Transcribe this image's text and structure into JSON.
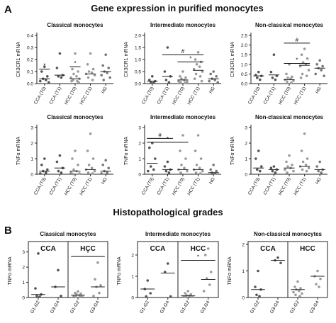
{
  "figure": {
    "panel_a": "A",
    "title_a": "Gene expression in purified monocytes",
    "title_b": "Histopathological grades",
    "panel_b": "B"
  },
  "chart_data": [
    {
      "type": "dot",
      "title": "Classical monocytes",
      "ylabel": "CX3CR1 mRNA",
      "categories": [
        "CCA (T0)",
        "CCA (T1)",
        "HCC (T0)",
        "HCC (T1)",
        "HG"
      ],
      "ylim": [
        0,
        0.4
      ],
      "yticks": [
        {
          "value": 0,
          "label": "0.0"
        },
        0.1,
        0.2,
        0.3,
        0.4
      ],
      "points": [
        [
          0.14,
          0.1,
          0.06,
          0.04,
          0.03,
          0.02,
          0.01
        ],
        [
          0.25,
          0.13,
          0.07,
          0.06,
          0.05
        ],
        [
          0.25,
          0.12,
          0.1,
          0.08,
          0.06,
          0.05,
          0.04,
          0.03,
          0.02,
          0.02,
          0.01
        ],
        [
          0.25,
          0.16,
          0.12,
          0.1,
          0.09,
          0.08,
          0.07,
          0.05,
          0.03
        ],
        [
          0.24,
          0.15,
          0.13,
          0.1,
          0.09,
          0.07,
          0.05,
          0.03
        ]
      ],
      "medians": [
        0.04,
        0.07,
        0.04,
        0.08,
        0.1
      ],
      "colors": [
        "#555555",
        "#555555",
        "#9a9a9a",
        "#9a9a9a",
        "#777777"
      ],
      "brackets": [
        {
          "from": 0,
          "to": 0,
          "y": 0.12,
          "label": "*"
        },
        {
          "from": 2,
          "to": 2,
          "y": 0.14,
          "label": "*"
        }
      ]
    },
    {
      "type": "dot",
      "title": "Intermediate monocytes",
      "ylabel": "CX3CR1 mRNA",
      "categories": [
        "CCA (T0)",
        "CCA (T1)",
        "HCC (T0)",
        "HCC (T1)",
        "HG"
      ],
      "ylim": [
        0,
        2.0
      ],
      "yticks": [
        {
          "value": 0,
          "label": "0.0"
        },
        0.5,
        {
          "value": 1,
          "label": "1.0"
        },
        1.5,
        {
          "value": 2,
          "label": "2.0"
        }
      ],
      "points": [
        [
          0.3,
          0.15,
          0.1,
          0.05,
          0.03
        ],
        [
          1.5,
          0.5,
          0.3,
          0.15,
          0.05
        ],
        [
          0.5,
          0.3,
          0.25,
          0.2,
          0.15,
          0.1,
          0.08,
          0.05,
          0.03,
          0.02
        ],
        [
          1.3,
          1.0,
          0.9,
          0.8,
          0.7,
          0.6,
          0.5,
          0.4,
          0.3,
          0.2,
          0.1
        ],
        [
          0.5,
          0.4,
          0.3,
          0.2,
          0.15,
          0.1,
          0.05
        ]
      ],
      "medians": [
        0.1,
        0.3,
        0.15,
        0.55,
        0.2
      ],
      "colors": [
        "#555555",
        "#555555",
        "#9a9a9a",
        "#9a9a9a",
        "#777777"
      ],
      "brackets": [
        {
          "from": 1,
          "to": 3,
          "y": 1.2,
          "label": "#"
        },
        {
          "from": 2,
          "to": 3,
          "y": 0.9,
          "label": "*"
        }
      ]
    },
    {
      "type": "dot",
      "title": "Non-classical monocytes",
      "ylabel": "CX3CR1 mRNA",
      "categories": [
        "CCA (T0)",
        "CCA (T1)",
        "HCC (T0)",
        "HCC (T1)",
        "HG"
      ],
      "ylim": [
        0,
        2.5
      ],
      "yticks": [
        {
          "value": 0,
          "label": "0.0"
        },
        0.5,
        {
          "value": 1,
          "label": "1.0"
        },
        1.5,
        {
          "value": 2,
          "label": "2.0"
        },
        2.5
      ],
      "points": [
        [
          0.6,
          0.45,
          0.4,
          0.3,
          0.2
        ],
        [
          1.5,
          0.6,
          0.4,
          0.3,
          0.2
        ],
        [
          1.0,
          0.5,
          0.35,
          0.3,
          0.25,
          0.2,
          0.15,
          0.1,
          0.05
        ],
        [
          1.8,
          1.5,
          1.3,
          1.1,
          1.0,
          0.9,
          0.7,
          0.5,
          0.4,
          0.3
        ],
        [
          1.2,
          1.0,
          0.9,
          0.8,
          0.7,
          0.5,
          0.4
        ]
      ],
      "medians": [
        0.4,
        0.45,
        0.2,
        0.95,
        0.8
      ],
      "colors": [
        "#555555",
        "#555555",
        "#9a9a9a",
        "#9a9a9a",
        "#777777"
      ],
      "brackets": [
        {
          "from": 2,
          "to": 3,
          "y": 2.1,
          "label": "#"
        },
        {
          "from": 2,
          "to": 3,
          "y": 1.05,
          "label": "*"
        }
      ]
    },
    {
      "type": "dot",
      "title": "Classical monocytes",
      "ylabel": "TNFα mRNA",
      "categories": [
        "CCA (T0)",
        "CCA (T1)",
        "HCC (T0)",
        "HCC (T1)",
        "HG"
      ],
      "ylim": [
        0,
        3
      ],
      "yticks": [
        0,
        1,
        2,
        3
      ],
      "points": [
        [
          1.0,
          0.6,
          0.3,
          0.2,
          0.1,
          0.05
        ],
        [
          1.2,
          0.8,
          0.4,
          0.2,
          0.1
        ],
        [
          1.5,
          1.0,
          0.6,
          0.3,
          0.2,
          0.1,
          0.05,
          0.02
        ],
        [
          2.6,
          1.5,
          1.0,
          0.6,
          0.4,
          0.3,
          0.2,
          0.1,
          0.05
        ],
        [
          0.9,
          0.6,
          0.4,
          0.2,
          0.1,
          0.05
        ]
      ],
      "medians": [
        0.2,
        0.4,
        0.2,
        0.3,
        0.2
      ],
      "colors": [
        "#555555",
        "#555555",
        "#9a9a9a",
        "#9a9a9a",
        "#777777"
      ],
      "brackets": []
    },
    {
      "type": "dot",
      "title": "Intermediate monocytes",
      "ylabel": "TNFα mRNA",
      "categories": [
        "CCA (T0)",
        "CCA (T1)",
        "HCC (T0)",
        "HCC (T1)",
        "HG"
      ],
      "ylim": [
        0,
        3
      ],
      "yticks": [
        0,
        1,
        2,
        3
      ],
      "points": [
        [
          2.0,
          1.7,
          1.0,
          0.5,
          0.3,
          0.2
        ],
        [
          0.8,
          0.5,
          0.3,
          0.2,
          0.1
        ],
        [
          2.5,
          1.5,
          1.0,
          0.6,
          0.4,
          0.3,
          0.2,
          0.1
        ],
        [
          2.5,
          1.5,
          1.0,
          0.6,
          0.4,
          0.3,
          0.2,
          0.1,
          0.05
        ],
        [
          0.6,
          0.3,
          0.2,
          0.1,
          0.05
        ]
      ],
      "medians": [
        0.7,
        0.3,
        0.3,
        0.3,
        0.1
      ],
      "colors": [
        "#555555",
        "#555555",
        "#9a9a9a",
        "#9a9a9a",
        "#777777"
      ],
      "brackets": [
        {
          "from": 0,
          "to": 1,
          "y": 2.3,
          "label": "#"
        },
        {
          "from": 0,
          "to": 2,
          "y": 2.05,
          "label": "*"
        }
      ]
    },
    {
      "type": "dot",
      "title": "Non-classical monocytes",
      "ylabel": "TNFα mRNA",
      "categories": [
        "CCA (T0)",
        "CCA (T1)",
        "HCC (T0)",
        "HCC (T1)",
        "HG"
      ],
      "ylim": [
        0,
        3
      ],
      "yticks": [
        0,
        1,
        2,
        3
      ],
      "points": [
        [
          1.5,
          1.0,
          0.5,
          0.3,
          0.2
        ],
        [
          0.5,
          0.4,
          0.3,
          0.2,
          0.1
        ],
        [
          1.2,
          0.8,
          0.6,
          0.5,
          0.4,
          0.3,
          0.2,
          0.1
        ],
        [
          2.6,
          1.5,
          1.0,
          0.8,
          0.6,
          0.5,
          0.4,
          0.3,
          0.2
        ],
        [
          0.8,
          0.5,
          0.3,
          0.2,
          0.1
        ]
      ],
      "medians": [
        0.4,
        0.3,
        0.4,
        0.5,
        0.3
      ],
      "colors": [
        "#555555",
        "#555555",
        "#9a9a9a",
        "#9a9a9a",
        "#777777"
      ],
      "brackets": []
    },
    {
      "type": "grade",
      "title": "Classical monocytes",
      "ylabel": "TNFα mRNA",
      "categories": [
        "G1-G2",
        "G3-G4",
        "G1-G2",
        "G3-G4"
      ],
      "groups": [
        {
          "label": "CCA",
          "from": 0,
          "to": 1
        },
        {
          "label": "HCC",
          "from": 2,
          "to": 3
        }
      ],
      "ylim": [
        0,
        3.5
      ],
      "yticks": [
        0,
        1,
        2,
        3
      ],
      "points": [
        [
          2.9,
          0.6,
          0.2,
          0.1,
          0.05
        ],
        [
          1.8,
          0.7,
          0.1
        ],
        [
          0.4,
          0.3,
          0.25,
          0.2,
          0.15,
          0.1,
          0.08,
          0.05,
          0.03
        ],
        [
          2.3,
          1.2,
          0.8,
          0.7,
          0.3,
          0.1
        ]
      ],
      "medians": [
        0.2,
        0.7,
        0.15,
        0.7
      ],
      "colors": [
        "#555555",
        "#555555",
        "#9a9a9a",
        "#9a9a9a"
      ],
      "brackets": [
        {
          "from": 2,
          "to": 3,
          "y": 2.7,
          "label": "*"
        }
      ]
    },
    {
      "type": "grade",
      "title": "Intermediate monocytes",
      "ylabel": "TNFα mRNA",
      "categories": [
        "G1-G2",
        "G3-G4",
        "G1-G2",
        "G3-G4"
      ],
      "groups": [
        {
          "label": "CCA",
          "from": 0,
          "to": 1
        },
        {
          "label": "HCC",
          "from": 2,
          "to": 3
        }
      ],
      "ylim": [
        0,
        2.5
      ],
      "yticks": [
        0,
        1,
        2
      ],
      "points": [
        [
          0.8,
          0.4,
          0.2,
          0.05
        ],
        [
          1.6,
          1.2,
          0.05
        ],
        [
          0.3,
          0.2,
          0.15,
          0.1,
          0.08,
          0.05,
          0.03,
          0.02
        ],
        [
          2.3,
          2.0,
          1.2,
          0.9,
          0.6,
          0.3
        ]
      ],
      "medians": [
        0.4,
        1.15,
        0.08,
        0.85
      ],
      "colors": [
        "#555555",
        "#555555",
        "#9a9a9a",
        "#9a9a9a"
      ],
      "brackets": [
        {
          "from": 2,
          "to": 3,
          "y": 1.75,
          "label": "*"
        }
      ]
    },
    {
      "type": "grade",
      "title": "Non-classical monocytes",
      "ylabel": "TNFα mRNA",
      "categories": [
        "G1-G2",
        "G3-G4",
        "G1-G2",
        "G3-G4"
      ],
      "groups": [
        {
          "label": "CCA",
          "from": 0,
          "to": 1
        },
        {
          "label": "HCC",
          "from": 2,
          "to": 3
        }
      ],
      "ylim": [
        0,
        2
      ],
      "yticks": [
        0,
        1,
        2
      ],
      "points": [
        [
          1.0,
          0.4,
          0.3,
          0.1,
          0.05
        ],
        [
          1.5,
          1.4,
          1.3
        ],
        [
          0.6,
          0.4,
          0.35,
          0.3,
          0.25,
          0.2,
          0.15,
          0.1,
          0.05
        ],
        [
          1.0,
          0.8,
          0.7,
          0.5,
          0.4
        ]
      ],
      "medians": [
        0.3,
        1.4,
        0.3,
        0.8
      ],
      "colors": [
        "#555555",
        "#555555",
        "#9a9a9a",
        "#9a9a9a"
      ],
      "brackets": []
    }
  ]
}
